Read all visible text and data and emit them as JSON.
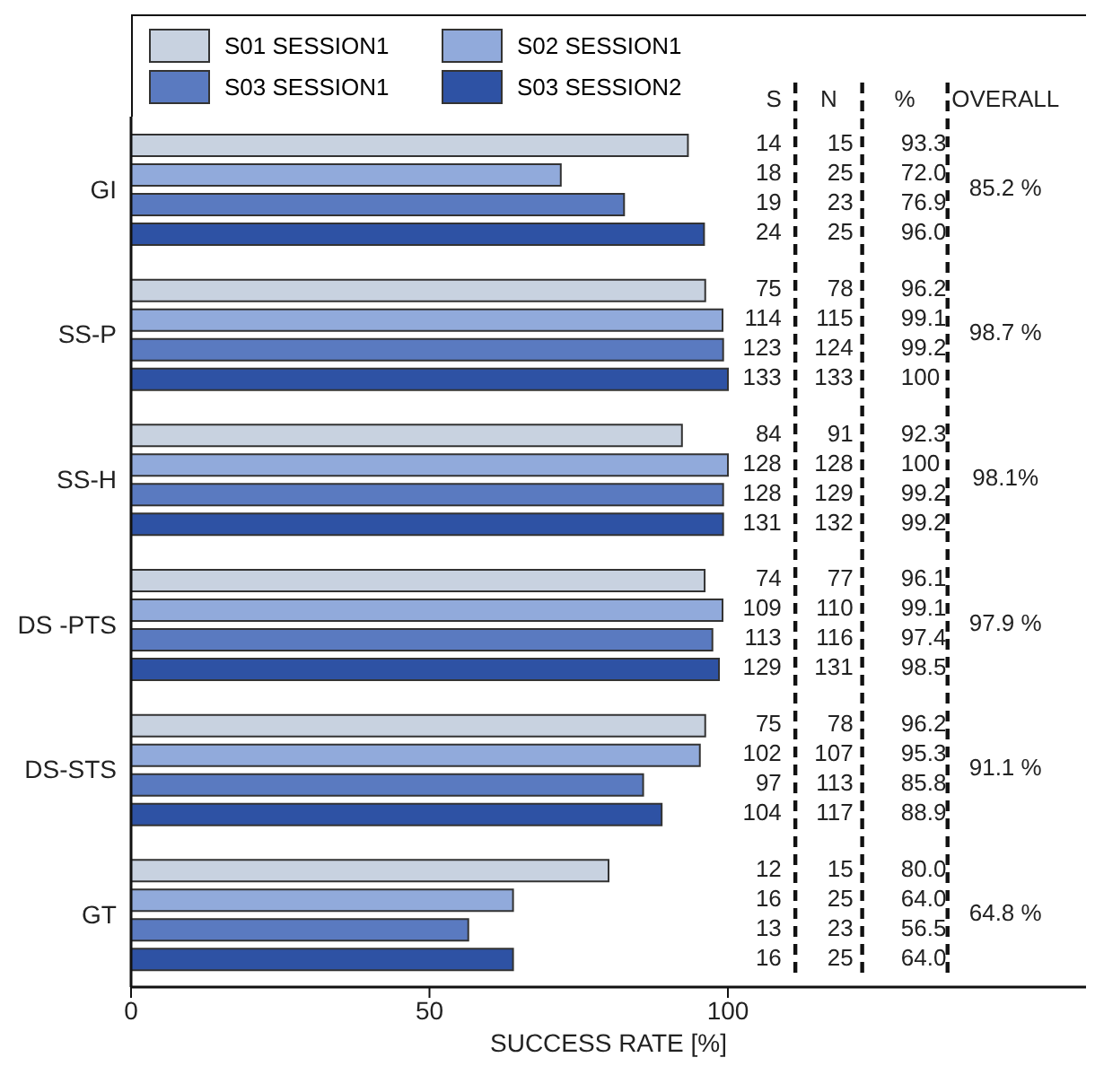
{
  "chart_data": {
    "type": "bar",
    "orientation": "horizontal",
    "xlabel": "SUCCESS RATE [%]",
    "categories": [
      "GI",
      "SS-P",
      "SS-H",
      "DS -PTS",
      "DS-STS",
      "GT"
    ],
    "series": [
      {
        "name": "S01 SESSION1",
        "color": "#c8d2e0",
        "values": [
          93.3,
          96.2,
          92.3,
          96.1,
          96.2,
          80.0
        ]
      },
      {
        "name": "S02 SESSION1",
        "color": "#91aadb",
        "values": [
          72.0,
          99.1,
          100,
          99.1,
          95.3,
          64.0
        ]
      },
      {
        "name": "S03 SESSION1",
        "color": "#5a7ac0",
        "values": [
          82.6,
          99.2,
          99.2,
          97.4,
          85.8,
          56.5
        ]
      },
      {
        "name": "S03 SESSION2",
        "color": "#2e52a4",
        "values": [
          96.0,
          100,
          99.2,
          98.5,
          88.9,
          64.0
        ]
      }
    ],
    "xlim": [
      0,
      160
    ],
    "xticks": [
      0,
      50,
      100
    ],
    "grid": false,
    "legend": "top left",
    "annotations": [
      "S",
      "N",
      "%",
      "OVERALL",
      "14",
      "15",
      "93.3",
      "18",
      "25",
      "72.0",
      "19",
      "23",
      "76.9",
      "24",
      "25",
      "96.0",
      "75",
      "78",
      "96.2",
      "114",
      "115",
      "99.1",
      "123",
      "124",
      "99.2",
      "133",
      "133",
      "100",
      "84",
      "91",
      "92.3",
      "128",
      "128",
      "100",
      "128",
      "129",
      "99.2",
      "131",
      "132",
      "99.2",
      "74",
      "77",
      "96.1",
      "109",
      "110",
      "99.1",
      "113",
      "116",
      "97.4",
      "129",
      "131",
      "98.5",
      "75",
      "78",
      "96.2",
      "102",
      "107",
      "95.3",
      "97",
      "113",
      "85.8",
      "104",
      "117",
      "88.9",
      "12",
      "15",
      "80.0",
      "16",
      "25",
      "64.0",
      "13",
      "23",
      "56.5",
      "16",
      "25",
      "64.0",
      "85.2 %",
      "98.7 %",
      "98.1%",
      "97.9 %",
      "91.1 %",
      "64.8 %"
    ]
  }
}
